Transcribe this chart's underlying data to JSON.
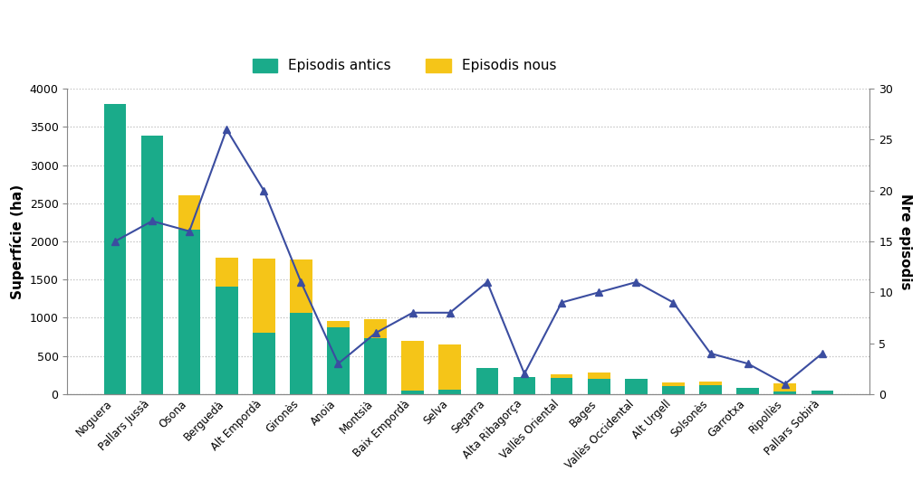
{
  "categories": [
    "Noguera",
    "Pallars Jussà",
    "Osona",
    "Berguedà",
    "Alt Empordà",
    "Gironès",
    "Anoia",
    "Montsià",
    "Baix Empordà",
    "Selva",
    "Segarra",
    "Alta Ribagorça",
    "Vallès Oriental",
    "Bages",
    "Vallès Occidental",
    "Alt Urgell",
    "Solsonès",
    "Garrotxa",
    "Ripollès",
    "Pallars Sobirà"
  ],
  "antics": [
    3800,
    3390,
    2150,
    1410,
    800,
    1060,
    880,
    730,
    50,
    60,
    340,
    230,
    210,
    200,
    200,
    100,
    120,
    80,
    40,
    50
  ],
  "nous": [
    0,
    0,
    450,
    380,
    980,
    700,
    80,
    250,
    650,
    590,
    0,
    0,
    55,
    80,
    0,
    50,
    50,
    0,
    100,
    0
  ],
  "episodis": [
    15,
    17,
    16,
    26,
    20,
    11,
    3,
    6,
    8,
    8,
    11,
    2,
    9,
    10,
    11,
    9,
    4,
    3,
    1,
    4
  ],
  "antics_color": "#1aab8a",
  "nous_color": "#f5c518",
  "line_color": "#3b4da0",
  "bar_width": 0.6,
  "ylim_left": [
    0,
    4000
  ],
  "ylim_right": [
    0,
    30
  ],
  "yticks_left": [
    0,
    500,
    1000,
    1500,
    2000,
    2500,
    3000,
    3500,
    4000
  ],
  "yticks_right": [
    0,
    5,
    10,
    15,
    20,
    25,
    30
  ],
  "ylabel_left": "Superfície (ha)",
  "ylabel_right": "Nre episodis",
  "legend_antics": "Episodis antics",
  "legend_nous": "Episodis nous",
  "background_color": "#ffffff",
  "grid_color": "#bbbbbb",
  "figsize": [
    10.18,
    5.32
  ],
  "dpi": 100
}
